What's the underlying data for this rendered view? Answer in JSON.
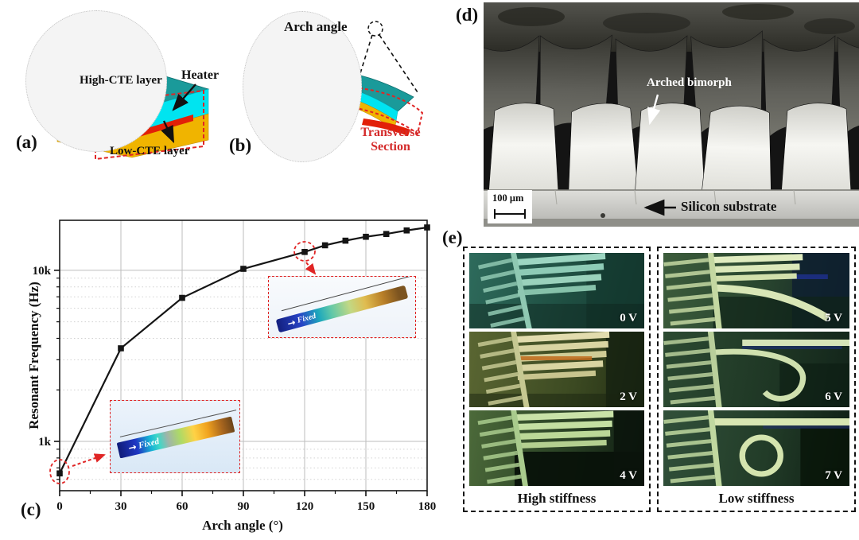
{
  "figure_labels": {
    "a": "(a)",
    "b": "(b)",
    "c": "(c)",
    "d": "(d)",
    "e": "(e)"
  },
  "panel_a": {
    "high_cte": "High-CTE layer",
    "heater": "Heater",
    "low_cte": "Low-CTE layer",
    "colors": {
      "top_face": "#1a9a9a",
      "side_face": "#00e4f0",
      "bottom_layer": "#f0b400",
      "heater": "#e22008",
      "outline": "#e02525"
    }
  },
  "panel_b": {
    "arch_angle": "Arch angle",
    "transverse_section": "Transverse Section"
  },
  "panel_d": {
    "arched_bimorph": "Arched bimorph",
    "scale_bar": "100 μm",
    "silicon_substrate": "Silicon substrate"
  },
  "panel_e": {
    "groups": [
      {
        "caption": "High stiffness",
        "voltages": [
          "0 V",
          "2 V",
          "4 V"
        ]
      },
      {
        "caption": "Low stiffness",
        "voltages": [
          "5 V",
          "6 V",
          "7 V"
        ]
      }
    ]
  },
  "chart_data": {
    "type": "line",
    "xlabel": "Arch angle (°)",
    "ylabel": "Resonant Frequency (Hz)",
    "x": [
      0,
      30,
      60,
      90,
      120,
      130,
      140,
      150,
      160,
      170,
      180
    ],
    "y": [
      650,
      3500,
      6900,
      10200,
      12800,
      14000,
      14900,
      15700,
      16300,
      17100,
      17800
    ],
    "xlim": [
      0,
      180
    ],
    "xticks": [
      0,
      30,
      60,
      90,
      120,
      150,
      180
    ],
    "x_minor_step": 15,
    "yscale": "log",
    "ylim": [
      515,
      19600
    ],
    "ytick_labels": {
      "1000": "1k",
      "10000": "10k"
    },
    "y_minor_gridlines": [
      600,
      700,
      800,
      900,
      2000,
      3000,
      4000,
      5000,
      6000,
      7000,
      8000,
      9000
    ],
    "grid": true,
    "marker": "square",
    "line_color": "#151515",
    "highlighted_x": [
      0,
      120
    ],
    "insets": [
      {
        "label": "Fixed",
        "arrow_glyph": "→",
        "description": "flat-beam-mode-shape"
      },
      {
        "label": "Fixed",
        "arrow_glyph": "→",
        "description": "arched-beam-mode-shape"
      }
    ]
  }
}
